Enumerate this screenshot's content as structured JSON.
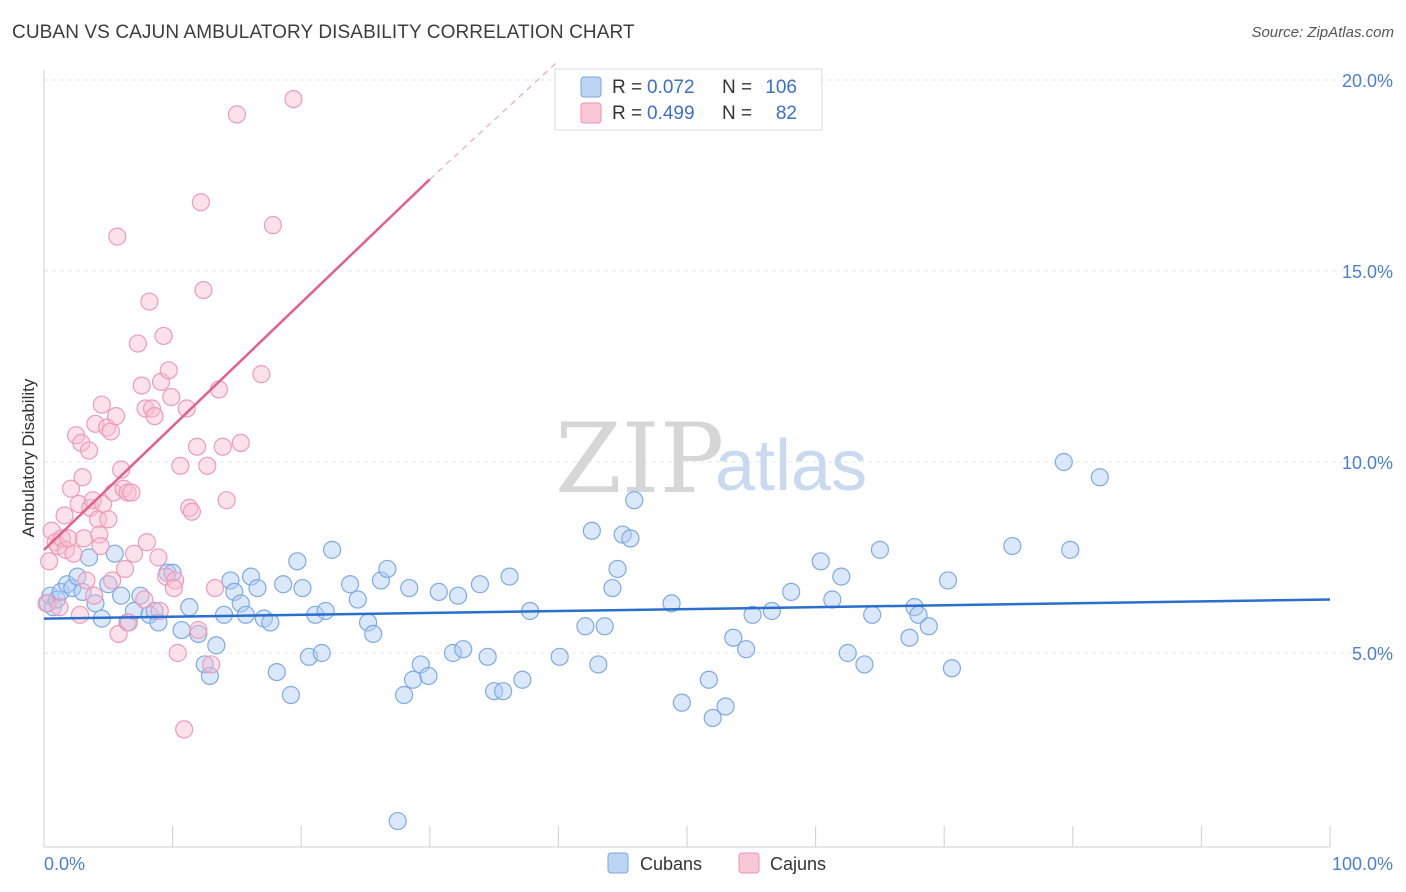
{
  "header": {
    "title": "CUBAN VS CAJUN AMBULATORY DISABILITY CORRELATION CHART",
    "source": "Source: ZipAtlas.com"
  },
  "watermark": {
    "zip": "ZIP",
    "atlas": "atlas"
  },
  "legend_top": {
    "rows": [
      {
        "r_label": "R =",
        "r_value": "0.072",
        "n_label": "N =",
        "n_value": "106",
        "color": "#a9c8f0"
      },
      {
        "r_label": "R =",
        "r_value": "0.499",
        "n_label": "N =",
        "n_value": "82",
        "color": "#f5b8cb"
      }
    ]
  },
  "legend_bottom": [
    {
      "label": "Cubans",
      "color": "#a9c8f0"
    },
    {
      "label": "Cajuns",
      "color": "#f5b8cb"
    }
  ],
  "chart_data": {
    "type": "scatter",
    "title": "CUBAN VS CAJUN AMBULATORY DISABILITY CORRELATION CHART",
    "xlabel": "",
    "ylabel": "Ambulatory Disability",
    "xlim": [
      0,
      100
    ],
    "ylim": [
      0,
      20.5
    ],
    "x_tick_labels": [
      "0.0%",
      "100.0%"
    ],
    "y_ticks": [
      5,
      10,
      15,
      20
    ],
    "y_tick_labels": [
      "5.0%",
      "10.0%",
      "15.0%",
      "20.0%"
    ],
    "grid": true,
    "legend_position": "top-center",
    "series": [
      {
        "name": "Cubans",
        "color": "#6fa0e0",
        "trend": {
          "x0": 0,
          "y0": 5.9,
          "x1": 100,
          "y1": 6.4,
          "color": "#2a6fcc"
        },
        "points": [
          [
            0.3,
            6.3
          ],
          [
            0.5,
            6.5
          ],
          [
            0.7,
            6.2
          ],
          [
            1.0,
            6.4
          ],
          [
            1.3,
            6.6
          ],
          [
            1.8,
            6.8
          ],
          [
            2.2,
            6.7
          ],
          [
            2.6,
            7.0
          ],
          [
            3.0,
            6.6
          ],
          [
            3.5,
            7.5
          ],
          [
            4.0,
            6.3
          ],
          [
            4.5,
            5.9
          ],
          [
            5.0,
            6.8
          ],
          [
            5.5,
            7.6
          ],
          [
            6.0,
            6.5
          ],
          [
            6.5,
            5.8
          ],
          [
            7.0,
            6.1
          ],
          [
            7.5,
            6.5
          ],
          [
            8.2,
            6.0
          ],
          [
            8.6,
            6.1
          ],
          [
            8.9,
            5.8
          ],
          [
            9.6,
            7.1
          ],
          [
            10.0,
            7.1
          ],
          [
            10.7,
            5.6
          ],
          [
            11.3,
            6.2
          ],
          [
            12.0,
            5.5
          ],
          [
            12.5,
            4.7
          ],
          [
            12.9,
            4.4
          ],
          [
            13.4,
            5.2
          ],
          [
            14.0,
            6.0
          ],
          [
            14.5,
            6.9
          ],
          [
            14.8,
            6.6
          ],
          [
            15.3,
            6.3
          ],
          [
            15.7,
            6.0
          ],
          [
            16.1,
            7.0
          ],
          [
            16.6,
            6.7
          ],
          [
            17.1,
            5.9
          ],
          [
            17.6,
            5.8
          ],
          [
            18.1,
            4.5
          ],
          [
            18.6,
            6.8
          ],
          [
            19.2,
            3.9
          ],
          [
            19.7,
            7.4
          ],
          [
            20.1,
            6.7
          ],
          [
            20.6,
            4.9
          ],
          [
            21.1,
            6.0
          ],
          [
            21.6,
            5.0
          ],
          [
            21.9,
            6.1
          ],
          [
            22.4,
            7.7
          ],
          [
            23.8,
            6.8
          ],
          [
            24.4,
            6.4
          ],
          [
            25.2,
            5.8
          ],
          [
            25.6,
            5.5
          ],
          [
            26.2,
            6.9
          ],
          [
            26.7,
            7.2
          ],
          [
            27.5,
            0.6
          ],
          [
            28.0,
            3.9
          ],
          [
            28.4,
            6.7
          ],
          [
            28.7,
            4.3
          ],
          [
            29.3,
            4.7
          ],
          [
            29.9,
            4.4
          ],
          [
            30.7,
            6.6
          ],
          [
            31.8,
            5.0
          ],
          [
            32.2,
            6.5
          ],
          [
            32.6,
            5.1
          ],
          [
            33.9,
            6.8
          ],
          [
            34.5,
            4.9
          ],
          [
            35.0,
            4.0
          ],
          [
            35.7,
            4.0
          ],
          [
            36.2,
            7.0
          ],
          [
            37.2,
            4.3
          ],
          [
            37.8,
            6.1
          ],
          [
            40.1,
            4.9
          ],
          [
            42.1,
            5.7
          ],
          [
            42.6,
            8.2
          ],
          [
            43.1,
            4.7
          ],
          [
            43.6,
            5.7
          ],
          [
            44.2,
            6.7
          ],
          [
            44.6,
            7.2
          ],
          [
            45.0,
            8.1
          ],
          [
            45.6,
            8.0
          ],
          [
            45.9,
            9.0
          ],
          [
            48.8,
            6.3
          ],
          [
            49.6,
            3.7
          ],
          [
            51.7,
            4.3
          ],
          [
            52.0,
            3.3
          ],
          [
            53.0,
            3.6
          ],
          [
            53.6,
            5.4
          ],
          [
            54.6,
            5.1
          ],
          [
            55.1,
            6.0
          ],
          [
            56.6,
            6.1
          ],
          [
            58.1,
            6.6
          ],
          [
            60.4,
            7.4
          ],
          [
            61.3,
            6.4
          ],
          [
            62.0,
            7.0
          ],
          [
            62.5,
            5.0
          ],
          [
            63.8,
            4.7
          ],
          [
            64.4,
            6.0
          ],
          [
            65.0,
            7.7
          ],
          [
            67.3,
            5.4
          ],
          [
            67.7,
            6.2
          ],
          [
            68.0,
            6.0
          ],
          [
            68.8,
            5.7
          ],
          [
            70.3,
            6.9
          ],
          [
            70.6,
            4.6
          ],
          [
            75.3,
            7.8
          ],
          [
            79.3,
            10.0
          ],
          [
            79.8,
            7.7
          ],
          [
            82.1,
            9.6
          ]
        ]
      },
      {
        "name": "Cajuns",
        "color": "#f08fb0",
        "trend": {
          "x0": 0,
          "y0": 7.7,
          "x1": 30,
          "y1": 17.4,
          "dash_x1": 40,
          "dash_y1": 20.5,
          "color": "#e2608a"
        },
        "points": [
          [
            0.2,
            6.3
          ],
          [
            0.4,
            7.4
          ],
          [
            0.6,
            8.2
          ],
          [
            0.9,
            7.9
          ],
          [
            1.1,
            7.8
          ],
          [
            1.4,
            8.0
          ],
          [
            1.7,
            7.7
          ],
          [
            1.9,
            8.0
          ],
          [
            2.1,
            9.3
          ],
          [
            2.3,
            7.6
          ],
          [
            2.5,
            10.7
          ],
          [
            2.7,
            8.9
          ],
          [
            2.9,
            10.5
          ],
          [
            3.1,
            8.0
          ],
          [
            3.3,
            6.9
          ],
          [
            3.5,
            10.3
          ],
          [
            3.6,
            8.8
          ],
          [
            3.8,
            9.0
          ],
          [
            4.0,
            11.0
          ],
          [
            4.2,
            8.5
          ],
          [
            4.3,
            8.1
          ],
          [
            4.5,
            11.5
          ],
          [
            4.6,
            8.9
          ],
          [
            4.9,
            10.9
          ],
          [
            5.0,
            8.5
          ],
          [
            5.2,
            10.8
          ],
          [
            5.4,
            9.2
          ],
          [
            5.6,
            11.2
          ],
          [
            5.7,
            15.9
          ],
          [
            6.0,
            9.8
          ],
          [
            6.2,
            9.3
          ],
          [
            6.5,
            9.2
          ],
          [
            6.8,
            9.2
          ],
          [
            7.0,
            7.6
          ],
          [
            7.3,
            13.1
          ],
          [
            7.6,
            12.0
          ],
          [
            7.9,
            11.4
          ],
          [
            8.2,
            14.2
          ],
          [
            8.4,
            11.4
          ],
          [
            8.6,
            11.2
          ],
          [
            8.9,
            7.5
          ],
          [
            9.1,
            12.1
          ],
          [
            9.3,
            13.3
          ],
          [
            9.5,
            7.0
          ],
          [
            9.7,
            12.4
          ],
          [
            9.9,
            11.7
          ],
          [
            10.2,
            6.9
          ],
          [
            10.4,
            5.0
          ],
          [
            10.6,
            9.9
          ],
          [
            10.9,
            3.0
          ],
          [
            11.1,
            11.4
          ],
          [
            11.3,
            8.8
          ],
          [
            11.5,
            8.7
          ],
          [
            11.9,
            10.4
          ],
          [
            12.2,
            16.8
          ],
          [
            12.4,
            14.5
          ],
          [
            12.7,
            9.9
          ],
          [
            13.0,
            4.7
          ],
          [
            13.3,
            6.7
          ],
          [
            13.6,
            11.9
          ],
          [
            13.9,
            10.4
          ],
          [
            14.2,
            9.0
          ],
          [
            15.0,
            19.1
          ],
          [
            15.3,
            10.5
          ],
          [
            16.9,
            12.3
          ],
          [
            17.8,
            16.2
          ],
          [
            19.4,
            19.5
          ],
          [
            1.2,
            6.2
          ],
          [
            2.8,
            6.0
          ],
          [
            3.9,
            6.5
          ],
          [
            5.8,
            5.5
          ],
          [
            6.6,
            5.8
          ],
          [
            7.8,
            6.4
          ],
          [
            9.0,
            6.1
          ],
          [
            10.1,
            6.7
          ],
          [
            12.0,
            5.6
          ],
          [
            4.4,
            7.8
          ],
          [
            6.3,
            7.2
          ],
          [
            8.0,
            7.9
          ],
          [
            3.0,
            9.6
          ],
          [
            1.6,
            8.6
          ],
          [
            5.3,
            6.9
          ]
        ]
      }
    ]
  }
}
